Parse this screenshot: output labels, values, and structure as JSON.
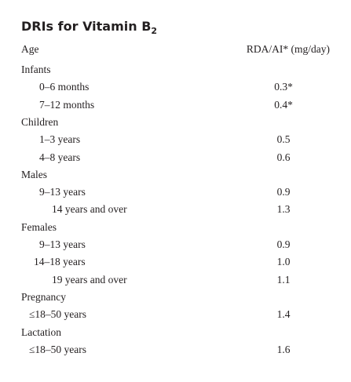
{
  "header": {
    "title": "DRIs for Vitamin B",
    "title_subscript": "2"
  },
  "table": {
    "columns": [
      "Age",
      "RDA/AI* (mg/day)"
    ],
    "groups": [
      {
        "label": "Infants",
        "rows": [
          [
            "0–6 months",
            "0.3*"
          ],
          [
            "7–12 months",
            "0.4*"
          ]
        ]
      },
      {
        "label": "Children",
        "rows": [
          [
            "1–3 years",
            "0.5"
          ],
          [
            "4–8 years",
            "0.6"
          ]
        ]
      },
      {
        "label": "Males",
        "rows": [
          [
            "9–13 years",
            "0.9"
          ],
          [
            "14 years and over",
            "1.3"
          ]
        ]
      },
      {
        "label": "Females",
        "rows": [
          [
            "9–13 years",
            "0.9"
          ],
          [
            "14–18 years",
            "1.0"
          ],
          [
            "19 years and over",
            "1.1"
          ]
        ]
      },
      {
        "label": "Pregnancy",
        "rows": [
          [
            "≤18–50 years",
            "1.4"
          ]
        ]
      },
      {
        "label": "Lactation",
        "rows": [
          [
            "≤18–50 years",
            "1.6"
          ]
        ]
      }
    ]
  }
}
